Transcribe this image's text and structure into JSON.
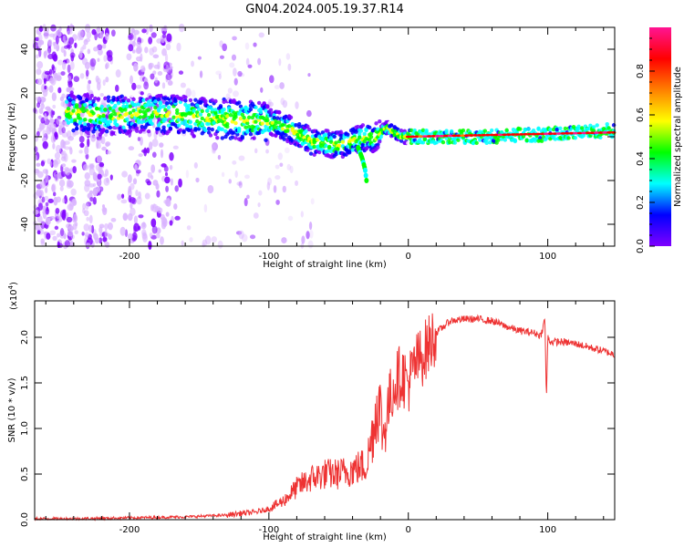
{
  "title": "GN04.2024.005.19.37.R14",
  "chart_data": [
    {
      "type": "heatmap",
      "xlabel": "Height of straight line (km)",
      "ylabel": "Frequency (Hz)",
      "xlim": [
        -268,
        148
      ],
      "ylim": [
        -50,
        50
      ],
      "xticks": [
        -200,
        -100,
        0,
        100
      ],
      "yticks": [
        -40,
        -20,
        0,
        20,
        40
      ],
      "colorbar": {
        "label": "Normalized spectral amplitude",
        "range": [
          0,
          1
        ],
        "ticks": [
          0.0,
          0.2,
          0.4,
          0.6,
          0.8
        ],
        "colors": [
          "#ffffff",
          "#7f00ff",
          "#0000ff",
          "#00ffff",
          "#00ff00",
          "#ffff00",
          "#ff8000",
          "#ff0000",
          "#ff1493"
        ]
      },
      "ridge": {
        "x": [
          -245,
          -230,
          -210,
          -190,
          -170,
          -150,
          -130,
          -110,
          -95,
          -80,
          -70,
          -60,
          -50,
          -42,
          -35,
          -30,
          -25,
          -20,
          -15,
          -10,
          -5,
          0,
          20,
          40,
          60,
          80,
          100,
          120,
          148
        ],
        "y": [
          12,
          10,
          10,
          11,
          10,
          9,
          8,
          7,
          6,
          2,
          -2,
          -3,
          -4,
          -2,
          -1,
          0,
          -1,
          2,
          4,
          2,
          0,
          0,
          0,
          0,
          0,
          1,
          1,
          2,
          3
        ]
      },
      "branch": {
        "x": [
          -36,
          -33,
          -31,
          -30
        ],
        "y": [
          -5,
          -10,
          -15,
          -20
        ]
      },
      "high_amplitude_segment": {
        "x": [
          0,
          148
        ],
        "y": [
          0,
          2
        ]
      }
    },
    {
      "type": "line",
      "xlabel": "Height of straight line (km)",
      "ylabel": "SNR (10 * v/v)",
      "y_multiplier": "(x10",
      "y_multiplier_exp": "4",
      "y_multiplier_close": ")",
      "xlim": [
        -268,
        148
      ],
      "ylim": [
        0,
        2.4
      ],
      "xticks": [
        -200,
        -100,
        0,
        100
      ],
      "yticks": [
        0.0,
        0.5,
        1.0,
        1.5,
        2.0
      ],
      "color": "#ee3333",
      "series": [
        {
          "x": [
            -268,
            -240,
            -200,
            -160,
            -130,
            -120,
            -110,
            -100,
            -90,
            -80,
            -70,
            -60,
            -50,
            -40,
            -30,
            -25,
            -22,
            -20,
            -18,
            -15,
            -10,
            -5,
            0,
            5,
            10,
            20,
            30,
            40,
            50,
            60,
            70,
            80,
            90,
            95,
            98,
            99,
            100,
            102,
            110,
            120,
            130,
            140,
            148
          ],
          "y": [
            0.01,
            0.01,
            0.02,
            0.03,
            0.05,
            0.07,
            0.08,
            0.12,
            0.2,
            0.35,
            0.45,
            0.5,
            0.5,
            0.55,
            0.6,
            1.0,
            1.3,
            1.2,
            0.9,
            1.2,
            1.5,
            1.6,
            1.5,
            1.7,
            1.8,
            2.05,
            2.18,
            2.2,
            2.2,
            2.18,
            2.12,
            2.07,
            2.05,
            2.02,
            2.2,
            1.3,
            2.0,
            1.95,
            1.95,
            1.93,
            1.89,
            1.85,
            1.81
          ]
        }
      ]
    }
  ]
}
